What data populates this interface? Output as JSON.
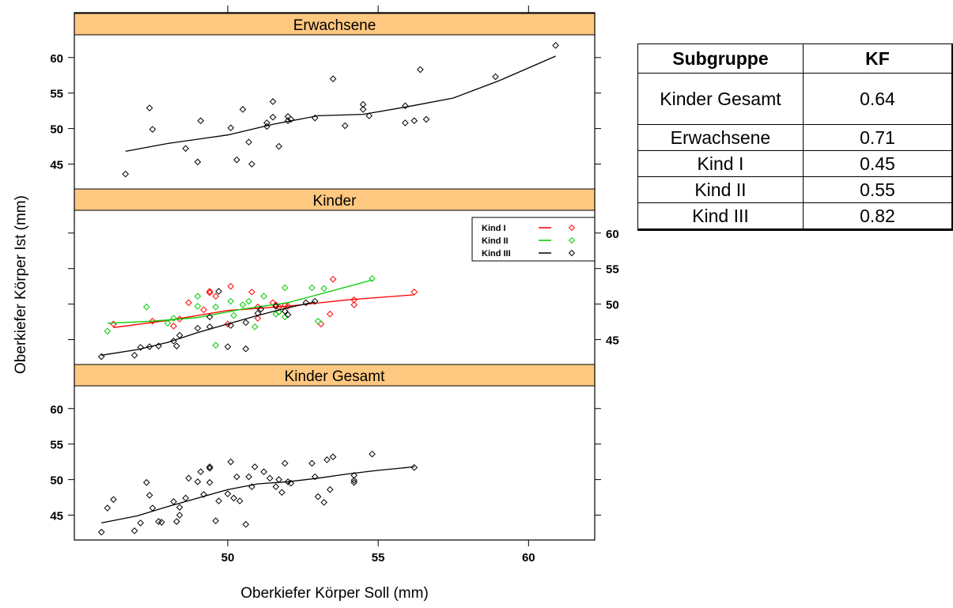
{
  "chart_data": {
    "type": "scatter",
    "xlabel": "Oberkiefer Körper Soll (mm)",
    "ylabel": "Oberkiefer Körper Ist (mm)",
    "xlim": [
      44.9,
      62.2
    ],
    "x_ticks": [
      50,
      55,
      60
    ],
    "ylim": [
      41.5,
      63.2
    ],
    "y_ticks": [
      45,
      50,
      55,
      60
    ],
    "grid": false,
    "panels": [
      {
        "strip": "Erwachsene",
        "series": [
          {
            "color": "#000000",
            "points": [
              [
                46.6,
                43.6
              ],
              [
                47.4,
                52.9
              ],
              [
                47.5,
                49.9
              ],
              [
                48.6,
                47.2
              ],
              [
                49.0,
                45.3
              ],
              [
                49.1,
                51.1
              ],
              [
                50.1,
                50.1
              ],
              [
                50.3,
                45.6
              ],
              [
                50.5,
                52.7
              ],
              [
                50.7,
                48.1
              ],
              [
                50.8,
                45.0
              ],
              [
                51.3,
                50.3
              ],
              [
                51.3,
                50.8
              ],
              [
                51.5,
                51.6
              ],
              [
                51.5,
                53.8
              ],
              [
                51.7,
                47.5
              ],
              [
                52.0,
                51.1
              ],
              [
                52.0,
                51.7
              ],
              [
                52.1,
                51.3
              ],
              [
                52.9,
                51.5
              ],
              [
                53.5,
                57.0
              ],
              [
                53.9,
                50.4
              ],
              [
                54.5,
                52.7
              ],
              [
                54.5,
                53.4
              ],
              [
                54.7,
                51.8
              ],
              [
                55.9,
                53.2
              ],
              [
                55.9,
                50.8
              ],
              [
                56.2,
                51.1
              ],
              [
                56.4,
                58.3
              ],
              [
                56.6,
                51.3
              ],
              [
                58.9,
                57.3
              ],
              [
                60.9,
                61.7
              ]
            ],
            "fit": [
              [
                46.6,
                46.8
              ],
              [
                48.0,
                47.9
              ],
              [
                50.0,
                49.1
              ],
              [
                51.5,
                50.6
              ],
              [
                53.0,
                51.8
              ],
              [
                54.5,
                52.0
              ],
              [
                56.0,
                53.1
              ],
              [
                57.5,
                54.3
              ],
              [
                59.0,
                56.7
              ],
              [
                60.9,
                60.2
              ]
            ]
          }
        ]
      },
      {
        "strip": "Kinder",
        "legend": "top-right",
        "series": [
          {
            "name": "Kind I",
            "color": "#ff0000",
            "points": [
              [
                46.2,
                47.2
              ],
              [
                47.5,
                47.6
              ],
              [
                48.2,
                46.9
              ],
              [
                48.4,
                47.9
              ],
              [
                48.7,
                50.2
              ],
              [
                49.2,
                49.2
              ],
              [
                49.4,
                51.8
              ],
              [
                49.4,
                51.6
              ],
              [
                49.6,
                51.1
              ],
              [
                50.0,
                47.2
              ],
              [
                50.1,
                52.5
              ],
              [
                50.8,
                51.7
              ],
              [
                51.0,
                48.0
              ],
              [
                51.0,
                49.6
              ],
              [
                51.5,
                50.2
              ],
              [
                51.6,
                49.9
              ],
              [
                51.7,
                48.9
              ],
              [
                51.7,
                49.6
              ],
              [
                51.9,
                49.8
              ],
              [
                52.0,
                49.7
              ],
              [
                53.1,
                47.2
              ],
              [
                53.4,
                48.6
              ],
              [
                53.5,
                53.5
              ],
              [
                54.2,
                50.6
              ],
              [
                54.2,
                49.9
              ],
              [
                56.2,
                51.7
              ]
            ],
            "fit": [
              [
                46.2,
                46.7
              ],
              [
                48.0,
                47.7
              ],
              [
                50.0,
                49.1
              ],
              [
                52.0,
                49.7
              ],
              [
                54.0,
                50.6
              ],
              [
                56.2,
                51.3
              ]
            ]
          },
          {
            "name": "Kind II",
            "color": "#00cc00",
            "points": [
              [
                46.0,
                46.2
              ],
              [
                47.3,
                49.6
              ],
              [
                48.0,
                47.3
              ],
              [
                48.2,
                48.0
              ],
              [
                49.0,
                49.7
              ],
              [
                49.0,
                51.1
              ],
              [
                49.6,
                49.6
              ],
              [
                49.6,
                44.2
              ],
              [
                50.1,
                50.4
              ],
              [
                50.2,
                48.4
              ],
              [
                50.5,
                49.9
              ],
              [
                50.7,
                50.4
              ],
              [
                50.9,
                46.8
              ],
              [
                51.2,
                51.1
              ],
              [
                51.6,
                48.6
              ],
              [
                51.7,
                48.9
              ],
              [
                51.9,
                52.3
              ],
              [
                51.9,
                48.2
              ],
              [
                52.8,
                52.3
              ],
              [
                53.0,
                47.6
              ],
              [
                53.2,
                52.2
              ],
              [
                54.8,
                53.6
              ]
            ],
            "fit": [
              [
                46.0,
                47.3
              ],
              [
                47.5,
                47.6
              ],
              [
                49.0,
                48.1
              ],
              [
                50.5,
                49.3
              ],
              [
                52.0,
                50.2
              ],
              [
                53.5,
                51.9
              ],
              [
                54.8,
                53.4
              ]
            ]
          },
          {
            "name": "Kind III",
            "color": "#000000",
            "points": [
              [
                45.8,
                42.6
              ],
              [
                46.9,
                42.8
              ],
              [
                47.1,
                43.9
              ],
              [
                47.4,
                44.0
              ],
              [
                47.7,
                44.1
              ],
              [
                48.2,
                44.8
              ],
              [
                48.3,
                44.1
              ],
              [
                48.4,
                45.6
              ],
              [
                49.0,
                46.6
              ],
              [
                49.4,
                46.8
              ],
              [
                49.4,
                48.2
              ],
              [
                49.7,
                51.8
              ],
              [
                50.0,
                44.0
              ],
              [
                50.1,
                47.0
              ],
              [
                50.6,
                43.7
              ],
              [
                50.6,
                47.4
              ],
              [
                51.0,
                48.7
              ],
              [
                51.1,
                49.3
              ],
              [
                51.6,
                49.7
              ],
              [
                51.9,
                49.0
              ],
              [
                52.0,
                48.5
              ],
              [
                52.6,
                50.2
              ],
              [
                52.9,
                50.4
              ]
            ],
            "fit": [
              [
                45.8,
                42.8
              ],
              [
                47.0,
                43.6
              ],
              [
                48.0,
                44.6
              ],
              [
                49.0,
                46.0
              ],
              [
                50.0,
                47.2
              ],
              [
                51.0,
                48.4
              ],
              [
                52.0,
                49.5
              ],
              [
                52.9,
                50.3
              ]
            ]
          }
        ],
        "legend_entries": [
          "Kind I",
          "Kind II",
          "Kind III"
        ]
      },
      {
        "strip": "Kinder Gesamt",
        "series": [
          {
            "color": "#000000",
            "points": [
              [
                45.8,
                42.6
              ],
              [
                46.0,
                46.0
              ],
              [
                46.2,
                47.2
              ],
              [
                46.9,
                42.8
              ],
              [
                47.1,
                43.9
              ],
              [
                47.3,
                49.6
              ],
              [
                47.4,
                47.8
              ],
              [
                47.5,
                46.0
              ],
              [
                47.7,
                44.1
              ],
              [
                47.8,
                44.0
              ],
              [
                48.2,
                46.9
              ],
              [
                48.3,
                44.1
              ],
              [
                48.4,
                46.1
              ],
              [
                48.4,
                45.0
              ],
              [
                48.6,
                47.4
              ],
              [
                48.7,
                50.2
              ],
              [
                49.0,
                49.7
              ],
              [
                49.1,
                51.1
              ],
              [
                49.2,
                47.9
              ],
              [
                49.4,
                51.6
              ],
              [
                49.4,
                51.8
              ],
              [
                49.4,
                49.6
              ],
              [
                49.6,
                44.2
              ],
              [
                49.7,
                47.0
              ],
              [
                50.0,
                48.0
              ],
              [
                50.1,
                52.5
              ],
              [
                50.2,
                47.4
              ],
              [
                50.3,
                50.4
              ],
              [
                50.4,
                47.0
              ],
              [
                50.6,
                43.7
              ],
              [
                50.7,
                50.4
              ],
              [
                50.8,
                49.0
              ],
              [
                50.9,
                51.8
              ],
              [
                51.2,
                51.1
              ],
              [
                51.4,
                50.2
              ],
              [
                51.6,
                49.0
              ],
              [
                51.7,
                50.0
              ],
              [
                51.8,
                48.2
              ],
              [
                51.9,
                52.3
              ],
              [
                52.0,
                49.7
              ],
              [
                52.1,
                49.5
              ],
              [
                52.8,
                52.3
              ],
              [
                52.9,
                50.4
              ],
              [
                53.0,
                47.6
              ],
              [
                53.2,
                46.8
              ],
              [
                53.3,
                52.8
              ],
              [
                53.4,
                48.6
              ],
              [
                53.5,
                53.2
              ],
              [
                54.2,
                50.6
              ],
              [
                54.2,
                49.9
              ],
              [
                54.2,
                49.6
              ],
              [
                54.8,
                53.6
              ],
              [
                56.2,
                51.7
              ]
            ],
            "fit": [
              [
                45.8,
                43.9
              ],
              [
                47.0,
                44.9
              ],
              [
                48.0,
                46.2
              ],
              [
                49.0,
                47.4
              ],
              [
                50.0,
                48.6
              ],
              [
                51.0,
                49.4
              ],
              [
                52.0,
                49.7
              ],
              [
                53.0,
                50.2
              ],
              [
                54.0,
                50.8
              ],
              [
                55.0,
                51.3
              ],
              [
                56.2,
                51.8
              ]
            ]
          }
        ]
      }
    ]
  },
  "table": {
    "headers": [
      "Subgruppe",
      "KF"
    ],
    "rows": [
      [
        "Kinder Gesamt",
        "0.64"
      ],
      [
        "Erwachsene",
        "0.71"
      ],
      [
        "Kind I",
        "0.45"
      ],
      [
        "Kind II",
        "0.55"
      ],
      [
        "Kind III",
        "0.82"
      ]
    ]
  }
}
